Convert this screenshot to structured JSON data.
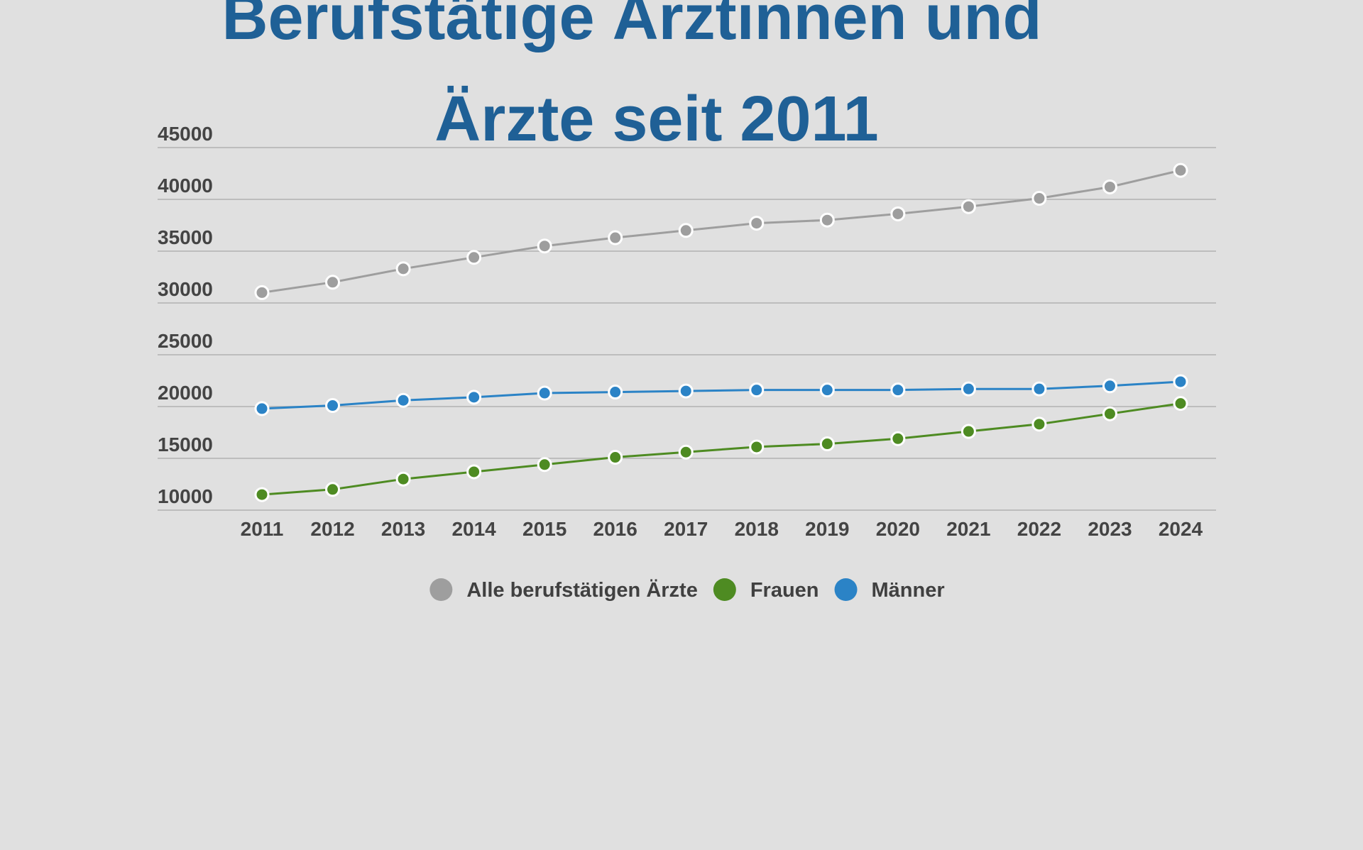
{
  "chart_data": {
    "type": "line",
    "title_lines": [
      "Berufstätige Ärztinnen und",
      "Ärzte seit 2011"
    ],
    "x": [
      "2011",
      "2012",
      "2013",
      "2014",
      "2015",
      "2016",
      "2017",
      "2018",
      "2019",
      "2020",
      "2021",
      "2022",
      "2023",
      "2024"
    ],
    "y_ticks": [
      10000,
      15000,
      20000,
      25000,
      30000,
      35000,
      40000,
      45000
    ],
    "ylim": [
      10000,
      45000
    ],
    "grid": true,
    "legend_position": "bottom",
    "series": [
      {
        "name": "Alle berufstätigen Ärzte",
        "color": "#9e9e9e",
        "values": [
          31000,
          32000,
          33300,
          34400,
          35500,
          36300,
          37000,
          37700,
          38000,
          38600,
          39300,
          40100,
          41200,
          42800
        ]
      },
      {
        "name": "Frauen",
        "color": "#4e8b22",
        "values": [
          11500,
          12000,
          13000,
          13700,
          14400,
          15100,
          15600,
          16100,
          16400,
          16900,
          17600,
          18300,
          19300,
          20300
        ]
      },
      {
        "name": "Männer",
        "color": "#2b83c6",
        "values": [
          19800,
          20100,
          20600,
          20900,
          21300,
          21400,
          21500,
          21600,
          21600,
          21600,
          21700,
          21700,
          22000,
          22400
        ]
      }
    ]
  }
}
